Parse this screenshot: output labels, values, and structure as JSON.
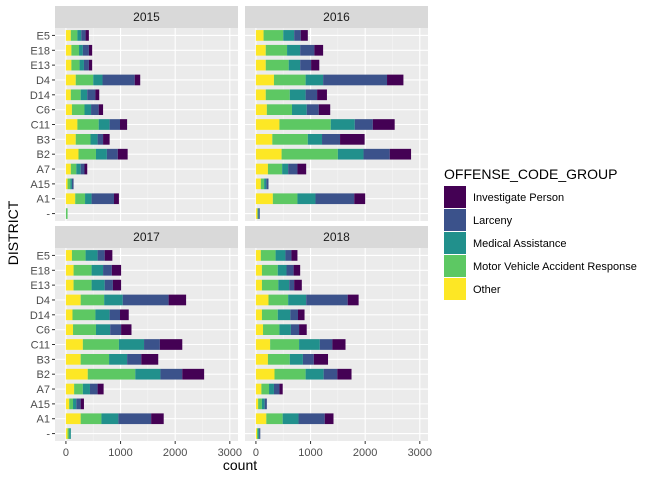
{
  "chart_data": {
    "type": "bar",
    "orientation": "horizontal",
    "stacked": true,
    "xlabel": "count",
    "ylabel": "DISTRICT",
    "xlim": [
      -200,
      3150
    ],
    "x_ticks": [
      0,
      1000,
      2000,
      3000
    ],
    "categories": [
      "",
      "A1",
      "A15",
      "A7",
      "B2",
      "B3",
      "C11",
      "C6",
      "D14",
      "D4",
      "E13",
      "E18",
      "E5"
    ],
    "legend": {
      "title": "OFFENSE_CODE_GROUP",
      "position": "right",
      "items": [
        "Investigate Person",
        "Larceny",
        "Medical Assistance",
        "Motor Vehicle Accident Response",
        "Other"
      ]
    },
    "stack_order": [
      "Other",
      "Motor Vehicle Accident Response",
      "Medical Assistance",
      "Larceny",
      "Investigate Person"
    ],
    "colors": {
      "Investigate Person": "#440154",
      "Larceny": "#3b528b",
      "Medical Assistance": "#21908c",
      "Motor Vehicle Accident Response": "#5dc863",
      "Other": "#fde725"
    },
    "panels": [
      {
        "title": "2015",
        "values": {
          "Other": [
            0,
            170,
            30,
            90,
            230,
            180,
            210,
            110,
            90,
            180,
            100,
            100,
            90
          ],
          "Motor Vehicle Accident Response": [
            30,
            180,
            50,
            100,
            320,
            270,
            390,
            230,
            180,
            320,
            150,
            140,
            120
          ],
          "Medical Assistance": [
            0,
            120,
            30,
            80,
            200,
            130,
            200,
            120,
            120,
            170,
            80,
            70,
            70
          ],
          "Larceny": [
            0,
            410,
            30,
            70,
            200,
            100,
            190,
            140,
            150,
            590,
            90,
            110,
            80
          ],
          "Investigate Person": [
            0,
            90,
            0,
            50,
            180,
            120,
            130,
            80,
            70,
            100,
            60,
            60,
            60
          ]
        }
      },
      {
        "title": "2016",
        "values": {
          "Other": [
            30,
            310,
            90,
            220,
            470,
            300,
            430,
            200,
            180,
            330,
            180,
            180,
            140
          ],
          "Motor Vehicle Accident Response": [
            0,
            450,
            60,
            260,
            1030,
            650,
            940,
            460,
            440,
            580,
            420,
            390,
            360
          ],
          "Medical Assistance": [
            20,
            330,
            40,
            110,
            470,
            260,
            440,
            270,
            290,
            320,
            210,
            240,
            200
          ],
          "Larceny": [
            20,
            710,
            40,
            170,
            480,
            330,
            330,
            220,
            210,
            1170,
            200,
            260,
            120
          ],
          "Investigate Person": [
            0,
            200,
            0,
            160,
            390,
            450,
            400,
            210,
            180,
            300,
            150,
            160,
            130
          ]
        }
      },
      {
        "title": "2017",
        "values": {
          "Other": [
            30,
            270,
            60,
            150,
            400,
            270,
            310,
            130,
            120,
            270,
            140,
            140,
            110
          ],
          "Motor Vehicle Accident Response": [
            30,
            380,
            70,
            160,
            870,
            520,
            660,
            420,
            420,
            430,
            330,
            330,
            250
          ],
          "Medical Assistance": [
            30,
            310,
            60,
            130,
            460,
            330,
            460,
            260,
            260,
            340,
            240,
            210,
            220
          ],
          "Larceny": [
            0,
            600,
            80,
            140,
            400,
            260,
            290,
            200,
            190,
            840,
            150,
            160,
            130
          ],
          "Investigate Person": [
            0,
            230,
            60,
            110,
            400,
            310,
            410,
            190,
            160,
            320,
            150,
            170,
            140
          ]
        }
      },
      {
        "title": "2018",
        "values": {
          "Other": [
            20,
            190,
            40,
            100,
            340,
            220,
            260,
            130,
            110,
            230,
            110,
            110,
            90
          ],
          "Motor Vehicle Accident Response": [
            20,
            300,
            70,
            140,
            570,
            400,
            530,
            300,
            290,
            360,
            300,
            290,
            270
          ],
          "Medical Assistance": [
            20,
            290,
            50,
            90,
            330,
            240,
            380,
            210,
            230,
            330,
            200,
            160,
            180
          ],
          "Larceny": [
            20,
            480,
            40,
            100,
            250,
            200,
            230,
            150,
            140,
            760,
            90,
            130,
            110
          ],
          "Investigate Person": [
            0,
            160,
            0,
            60,
            260,
            260,
            240,
            140,
            120,
            200,
            140,
            120,
            110
          ]
        }
      }
    ]
  }
}
